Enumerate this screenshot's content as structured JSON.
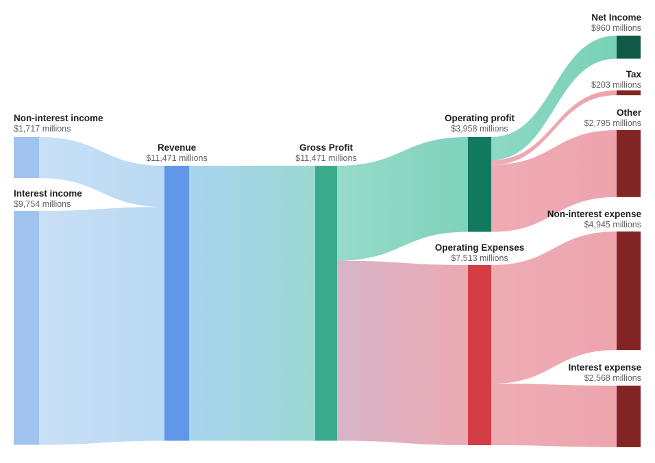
{
  "chart_data": {
    "type": "sankey",
    "title": "",
    "unit_suffix": "millions",
    "currency": "$",
    "nodes": [
      {
        "id": "non_interest_income",
        "label": "Non-interest income",
        "value": 1717,
        "value_label": "$1,717 millions",
        "color": "#a0c3ee"
      },
      {
        "id": "interest_income",
        "label": "Interest income",
        "value": 9754,
        "value_label": "$9,754 millions",
        "color": "#a0c3ee"
      },
      {
        "id": "revenue",
        "label": "Revenue",
        "value": 11471,
        "value_label": "$11,471 millions",
        "color": "#6097e8"
      },
      {
        "id": "gross_profit",
        "label": "Gross Profit",
        "value": 11471,
        "value_label": "$11,471 millions",
        "color": "#3aac8b"
      },
      {
        "id": "operating_profit",
        "label": "Operating profit",
        "value": 3958,
        "value_label": "$3,958 millions",
        "color": "#117a5e"
      },
      {
        "id": "operating_expenses",
        "label": "Operating Expenses",
        "value": 7513,
        "value_label": "$7,513 millions",
        "color": "#d43d46"
      },
      {
        "id": "net_income",
        "label": "Net Income",
        "value": 960,
        "value_label": "$960 millions",
        "color": "#125a48"
      },
      {
        "id": "tax",
        "label": "Tax",
        "value": 203,
        "value_label": "$203 millions",
        "color": "#832424"
      },
      {
        "id": "other",
        "label": "Other",
        "value": 2795,
        "value_label": "$2,795 millions",
        "color": "#832424"
      },
      {
        "id": "non_interest_expense",
        "label": "Non-interest expense",
        "value": 4945,
        "value_label": "$4,945 millions",
        "color": "#832424"
      },
      {
        "id": "interest_expense",
        "label": "Interest expense",
        "value": 2568,
        "value_label": "$2,568 millions",
        "color": "#832424"
      }
    ],
    "links": [
      {
        "source": "non_interest_income",
        "target": "revenue",
        "value": 1717,
        "color_from": "#c8e0f6",
        "color_to": "#bad8f3"
      },
      {
        "source": "interest_income",
        "target": "revenue",
        "value": 9754,
        "color_from": "#c8e0f6",
        "color_to": "#bad8f3"
      },
      {
        "source": "revenue",
        "target": "gross_profit",
        "value": 11471,
        "color_from": "#a9d4ef",
        "color_to": "#9bd8d2"
      },
      {
        "source": "gross_profit",
        "target": "operating_profit",
        "value": 3958,
        "color_from": "#97dacb",
        "color_to": "#7ed3bb"
      },
      {
        "source": "gross_profit",
        "target": "operating_expenses",
        "value": 7513,
        "color_from": "#d7b5c8",
        "color_to": "#eba9b3"
      },
      {
        "source": "operating_profit",
        "target": "net_income",
        "value": 960,
        "color_from": "#8cd8c4",
        "color_to": "#79d2b6"
      },
      {
        "source": "operating_profit",
        "target": "tax",
        "value": 203,
        "color_from": "#f0abb5",
        "color_to": "#eda3ad"
      },
      {
        "source": "operating_profit",
        "target": "other",
        "value": 2795,
        "color_from": "#f0abb5",
        "color_to": "#eda3ad"
      },
      {
        "source": "operating_expenses",
        "target": "non_interest_expense",
        "value": 4945,
        "color_from": "#edacb4",
        "color_to": "#eda5ae"
      },
      {
        "source": "operating_expenses",
        "target": "interest_expense",
        "value": 2568,
        "color_from": "#edacb4",
        "color_to": "#eda5ae"
      }
    ]
  }
}
